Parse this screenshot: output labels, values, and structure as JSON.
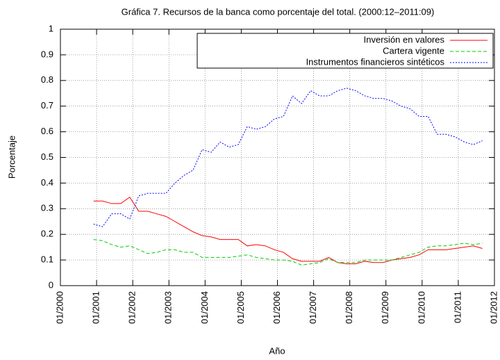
{
  "chart_data": {
    "type": "line",
    "title": "Gráfica 7. Recursos de la banca como porcentaje del total. (2000:12–2011:09)",
    "xlabel": "Año",
    "ylabel": "Porcentaje",
    "x": [
      "12/2000",
      "03/2001",
      "06/2001",
      "09/2001",
      "12/2001",
      "03/2002",
      "06/2002",
      "09/2002",
      "12/2002",
      "03/2003",
      "06/2003",
      "09/2003",
      "12/2003",
      "03/2004",
      "06/2004",
      "09/2004",
      "12/2004",
      "03/2005",
      "06/2005",
      "09/2005",
      "12/2005",
      "03/2006",
      "06/2006",
      "09/2006",
      "12/2006",
      "03/2007",
      "06/2007",
      "09/2007",
      "12/2007",
      "03/2008",
      "06/2008",
      "09/2008",
      "12/2008",
      "03/2009",
      "06/2009",
      "09/2009",
      "12/2009",
      "03/2010",
      "06/2010",
      "09/2010",
      "12/2010",
      "03/2011",
      "06/2011",
      "09/2011"
    ],
    "series": [
      {
        "name": "Inversión en valores",
        "color": "#ff0000",
        "dash": "",
        "values": [
          0.33,
          0.33,
          0.32,
          0.32,
          0.345,
          0.29,
          0.29,
          0.28,
          0.27,
          0.25,
          0.23,
          0.21,
          0.195,
          0.19,
          0.18,
          0.18,
          0.18,
          0.155,
          0.16,
          0.155,
          0.14,
          0.13,
          0.105,
          0.095,
          0.095,
          0.095,
          0.11,
          0.09,
          0.085,
          0.085,
          0.095,
          0.09,
          0.09,
          0.1,
          0.105,
          0.11,
          0.12,
          0.14,
          0.14,
          0.14,
          0.145,
          0.15,
          0.155,
          0.145
        ]
      },
      {
        "name": "Cartera vigente",
        "color": "#00cc00",
        "dash": "5,3",
        "values": [
          0.18,
          0.175,
          0.16,
          0.15,
          0.155,
          0.14,
          0.125,
          0.13,
          0.14,
          0.14,
          0.13,
          0.13,
          0.11,
          0.11,
          0.11,
          0.11,
          0.115,
          0.12,
          0.11,
          0.105,
          0.1,
          0.1,
          0.095,
          0.08,
          0.085,
          0.09,
          0.105,
          0.09,
          0.09,
          0.09,
          0.1,
          0.1,
          0.1,
          0.1,
          0.11,
          0.12,
          0.13,
          0.15,
          0.155,
          0.155,
          0.16,
          0.165,
          0.16,
          0.165
        ]
      },
      {
        "name": "Instrumentos financieros sintéticos",
        "color": "#0000ff",
        "dash": "2,2",
        "values": [
          0.24,
          0.23,
          0.28,
          0.28,
          0.26,
          0.35,
          0.36,
          0.36,
          0.36,
          0.4,
          0.43,
          0.45,
          0.53,
          0.52,
          0.56,
          0.54,
          0.55,
          0.62,
          0.61,
          0.62,
          0.65,
          0.66,
          0.74,
          0.71,
          0.76,
          0.74,
          0.74,
          0.76,
          0.77,
          0.76,
          0.74,
          0.73,
          0.73,
          0.72,
          0.7,
          0.69,
          0.66,
          0.66,
          0.59,
          0.59,
          0.58,
          0.56,
          0.55,
          0.565
        ]
      }
    ],
    "xlim": [
      "01/2000",
      "01/2012"
    ],
    "xticks": [
      "01/2000",
      "01/2001",
      "01/2002",
      "01/2003",
      "01/2004",
      "01/2005",
      "01/2006",
      "01/2007",
      "01/2008",
      "01/2009",
      "01/2010",
      "01/2011",
      "01/2012"
    ],
    "ylim": [
      0,
      1
    ],
    "yticks": [
      0,
      0.1,
      0.2,
      0.3,
      0.4,
      0.5,
      0.6,
      0.7,
      0.8,
      0.9,
      1
    ],
    "grid": true,
    "legend": "top-right"
  }
}
